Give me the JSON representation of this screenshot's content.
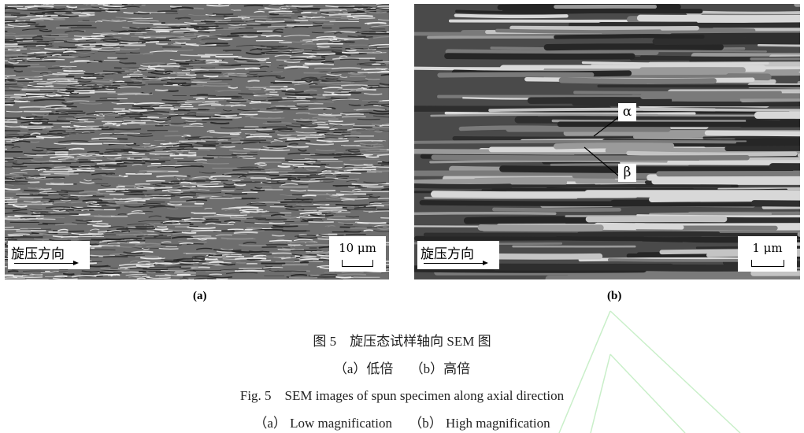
{
  "panels": [
    {
      "label": "(a)",
      "direction_label": "旋压方向",
      "scale_bar": "10 μm",
      "image": "SEM micrograph, low magnification"
    },
    {
      "label": "(b)",
      "direction_label": "旋压方向",
      "scale_bar": "1 μm",
      "image": "SEM micrograph, high magnification",
      "annotations": [
        "α",
        "β"
      ]
    }
  ],
  "caption": {
    "cn_title": "图 5　旋压态试样轴向 SEM 图",
    "cn_sub": "（a）低倍　 （b）高倍",
    "en_title": "Fig. 5　SEM images of spun specimen along axial direction",
    "en_sub": "（a） Low magnification　 （b） High magnification"
  }
}
